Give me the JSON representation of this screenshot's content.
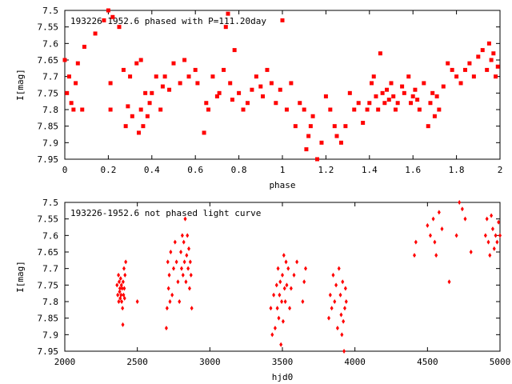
{
  "colors": {
    "series": "#ff0000",
    "axis": "#000000",
    "background": "#ffffff"
  },
  "chart_data": [
    {
      "type": "scatter",
      "title": "193226-1952.6 phased with P=111.20day",
      "xlabel": "phase",
      "ylabel": "I[mag]",
      "xlim": [
        0,
        2
      ],
      "ylim": [
        7.5,
        7.95
      ],
      "y_inverted": true,
      "x_ticks": [
        "0",
        "0.2",
        "0.4",
        "0.6",
        "0.8",
        "1",
        "1.2",
        "1.4",
        "1.6",
        "1.8",
        "2"
      ],
      "y_ticks": [
        "7.5",
        "7.55",
        "7.6",
        "7.65",
        "7.7",
        "7.75",
        "7.8",
        "7.85",
        "7.9",
        "7.95"
      ],
      "grid": false,
      "marker": "filled-square",
      "x": [
        0.0,
        0.01,
        0.02,
        0.03,
        0.04,
        0.05,
        0.06,
        0.08,
        0.09,
        0.14,
        0.18,
        0.2,
        0.21,
        0.21,
        0.22,
        0.25,
        0.27,
        0.28,
        0.29,
        0.3,
        0.31,
        0.33,
        0.34,
        0.35,
        0.35,
        0.36,
        0.37,
        0.38,
        0.39,
        0.4,
        0.42,
        0.44,
        0.45,
        0.46,
        0.48,
        0.5,
        0.53,
        0.55,
        0.57,
        0.6,
        0.61,
        0.64,
        0.65,
        0.66,
        0.68,
        0.7,
        0.71,
        0.73,
        0.74,
        0.75,
        0.76,
        0.77,
        0.78,
        0.8,
        0.82,
        0.84,
        0.86,
        0.88,
        0.9,
        0.91,
        0.93,
        0.95,
        0.97,
        0.99,
        1.0,
        1.02,
        1.04,
        1.06,
        1.08,
        1.1,
        1.11,
        1.12,
        1.13,
        1.14,
        1.16,
        1.18,
        1.2,
        1.22,
        1.24,
        1.25,
        1.27,
        1.29,
        1.31,
        1.33,
        1.35,
        1.37,
        1.39,
        1.4,
        1.41,
        1.42,
        1.43,
        1.44,
        1.45,
        1.46,
        1.47,
        1.48,
        1.49,
        1.5,
        1.51,
        1.52,
        1.53,
        1.55,
        1.56,
        1.58,
        1.59,
        1.6,
        1.61,
        1.62,
        1.63,
        1.65,
        1.67,
        1.68,
        1.69,
        1.7,
        1.71,
        1.72,
        1.74,
        1.76,
        1.78,
        1.8,
        1.82,
        1.84,
        1.86,
        1.88,
        1.9,
        1.92,
        1.94,
        1.95,
        1.96,
        1.97,
        1.98,
        1.99
      ],
      "y": [
        7.65,
        7.75,
        7.7,
        7.78,
        7.8,
        7.72,
        7.66,
        7.8,
        7.61,
        7.57,
        7.53,
        7.5,
        7.72,
        7.8,
        7.52,
        7.55,
        7.68,
        7.85,
        7.79,
        7.7,
        7.82,
        7.66,
        7.87,
        7.8,
        7.65,
        7.85,
        7.75,
        7.82,
        7.78,
        7.75,
        7.7,
        7.8,
        7.73,
        7.7,
        7.74,
        7.66,
        7.72,
        7.65,
        7.7,
        7.68,
        7.72,
        7.87,
        7.78,
        7.8,
        7.7,
        7.76,
        7.75,
        7.68,
        7.55,
        7.51,
        7.72,
        7.77,
        7.62,
        7.75,
        7.8,
        7.78,
        7.74,
        7.7,
        7.73,
        7.76,
        7.68,
        7.72,
        7.78,
        7.74,
        7.53,
        7.8,
        7.72,
        7.85,
        7.78,
        7.8,
        7.92,
        7.88,
        7.85,
        7.82,
        7.95,
        7.9,
        7.76,
        7.8,
        7.85,
        7.88,
        7.9,
        7.85,
        7.75,
        7.8,
        7.78,
        7.84,
        7.8,
        7.78,
        7.72,
        7.7,
        7.76,
        7.8,
        7.63,
        7.75,
        7.78,
        7.74,
        7.77,
        7.72,
        7.76,
        7.8,
        7.78,
        7.73,
        7.75,
        7.7,
        7.78,
        7.76,
        7.74,
        7.77,
        7.8,
        7.72,
        7.85,
        7.78,
        7.75,
        7.82,
        7.76,
        7.8,
        7.73,
        7.66,
        7.68,
        7.7,
        7.72,
        7.68,
        7.66,
        7.7,
        7.64,
        7.62,
        7.68,
        7.6,
        7.65,
        7.63,
        7.7,
        7.67
      ]
    },
    {
      "type": "scatter",
      "title": "193226-1952.6 not phased light curve",
      "xlabel": "hjd0",
      "ylabel": "I[mag]",
      "xlim": [
        2000,
        5000
      ],
      "ylim": [
        7.5,
        7.95
      ],
      "y_inverted": true,
      "x_ticks": [
        "2000",
        "2500",
        "3000",
        "3500",
        "4000",
        "4500",
        "5000"
      ],
      "y_ticks": [
        "7.5",
        "7.55",
        "7.6",
        "7.65",
        "7.7",
        "7.75",
        "7.8",
        "7.85",
        "7.9",
        "7.95"
      ],
      "grid": false,
      "marker": "filled-diamond",
      "x": [
        2360,
        2365,
        2370,
        2372,
        2375,
        2378,
        2380,
        2382,
        2385,
        2388,
        2390,
        2392,
        2395,
        2398,
        2400,
        2402,
        2405,
        2408,
        2410,
        2412,
        2415,
        2420,
        2500,
        2700,
        2705,
        2710,
        2715,
        2720,
        2725,
        2730,
        2740,
        2750,
        2760,
        2770,
        2780,
        2790,
        2800,
        2805,
        2810,
        2815,
        2820,
        2825,
        2830,
        2835,
        2840,
        2845,
        2850,
        2855,
        2860,
        2865,
        2870,
        2875,
        3420,
        3430,
        3440,
        3450,
        3460,
        3465,
        3470,
        3475,
        3480,
        3485,
        3490,
        3495,
        3500,
        3505,
        3510,
        3515,
        3520,
        3525,
        3530,
        3540,
        3550,
        3560,
        3580,
        3600,
        3640,
        3650,
        3660,
        3820,
        3830,
        3840,
        3850,
        3860,
        3870,
        3880,
        3890,
        3900,
        3905,
        3910,
        3915,
        3920,
        3925,
        3930,
        3935,
        3940,
        4410,
        4420,
        4500,
        4520,
        4540,
        4550,
        4560,
        4580,
        4600,
        4650,
        4700,
        4720,
        4740,
        4760,
        4800,
        4900,
        4910,
        4920,
        4930,
        4940,
        4950,
        4960,
        4970,
        4980,
        4990,
        5000
      ],
      "y": [
        7.75,
        7.78,
        7.72,
        7.8,
        7.74,
        7.77,
        7.76,
        7.79,
        7.73,
        7.78,
        7.75,
        7.8,
        7.76,
        7.82,
        7.87,
        7.74,
        7.78,
        7.7,
        7.76,
        7.79,
        7.72,
        7.68,
        7.8,
        7.88,
        7.82,
        7.68,
        7.76,
        7.72,
        7.8,
        7.65,
        7.78,
        7.7,
        7.62,
        7.68,
        7.74,
        7.8,
        7.65,
        7.7,
        7.6,
        7.72,
        7.62,
        7.68,
        7.55,
        7.74,
        7.66,
        7.6,
        7.7,
        7.64,
        7.76,
        7.68,
        7.72,
        7.82,
        7.82,
        7.9,
        7.78,
        7.88,
        7.75,
        7.82,
        7.7,
        7.85,
        7.78,
        7.74,
        7.93,
        7.8,
        7.72,
        7.86,
        7.66,
        7.76,
        7.8,
        7.68,
        7.75,
        7.7,
        7.82,
        7.76,
        7.72,
        7.68,
        7.8,
        7.74,
        7.7,
        7.85,
        7.78,
        7.82,
        7.72,
        7.8,
        7.75,
        7.88,
        7.7,
        7.78,
        7.84,
        7.9,
        7.74,
        7.86,
        7.95,
        7.82,
        7.76,
        7.8,
        7.66,
        7.62,
        7.57,
        7.6,
        7.55,
        7.62,
        7.66,
        7.53,
        7.58,
        7.74,
        7.6,
        7.5,
        7.52,
        7.55,
        7.65,
        7.6,
        7.55,
        7.62,
        7.66,
        7.54,
        7.58,
        7.64,
        7.6,
        7.62,
        7.56,
        7.6
      ]
    }
  ]
}
